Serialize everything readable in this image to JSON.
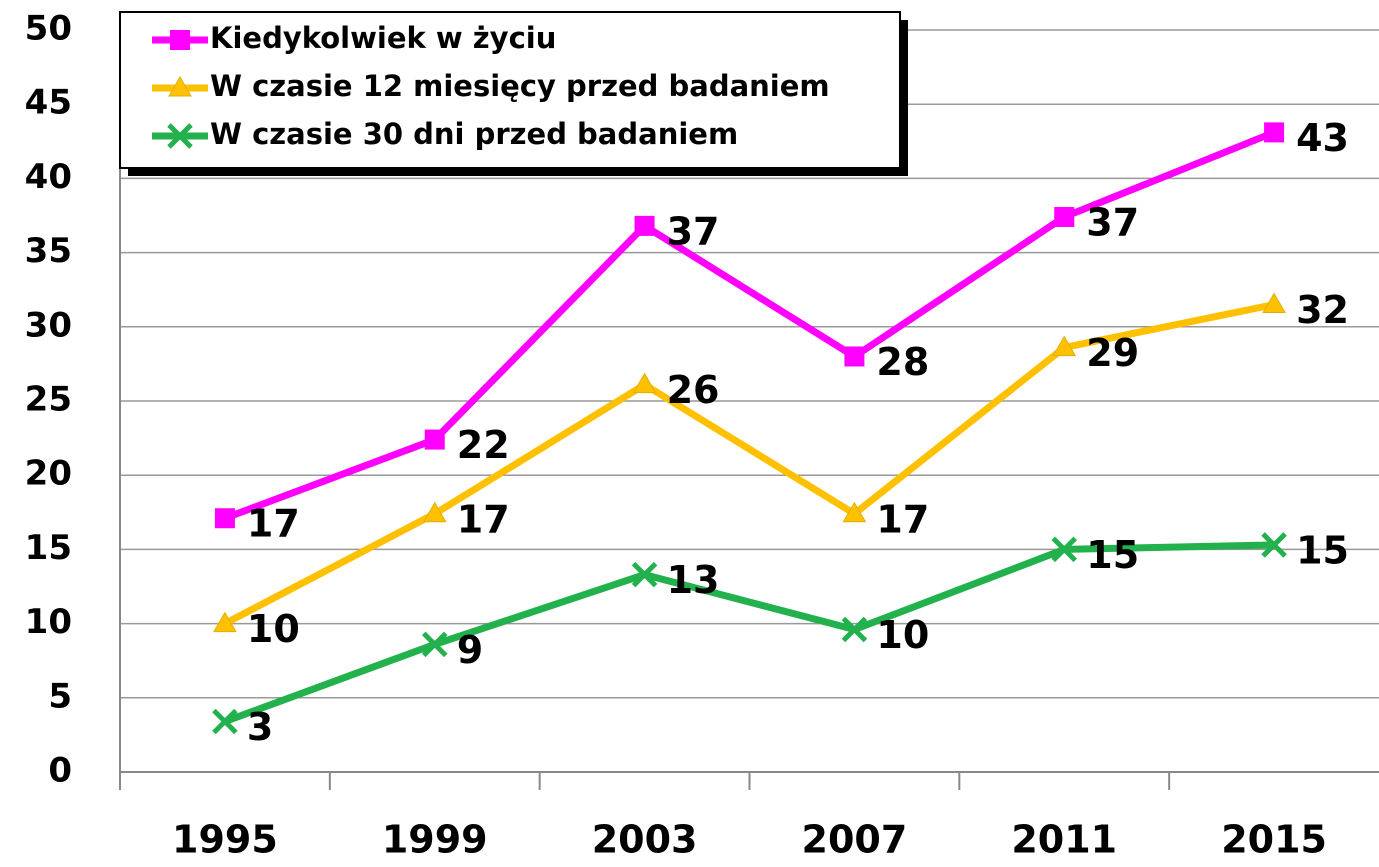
{
  "chart_data": {
    "type": "line",
    "categories": [
      "1995",
      "1999",
      "2003",
      "2007",
      "2011",
      "2015"
    ],
    "series": [
      {
        "name": "Kiedykolwiek w życiu",
        "color": "#ff00ff",
        "marker": "square",
        "values": [
          17.1,
          22.4,
          36.8,
          28.0,
          37.4,
          43.1
        ],
        "value_labels": [
          "17",
          "22",
          "37",
          "28",
          "37",
          "43"
        ]
      },
      {
        "name": "W czasie 12 miesięcy przed badaniem",
        "color": "#ffc000",
        "marker": "triangle",
        "values": [
          10.0,
          17.4,
          26.1,
          17.4,
          28.6,
          31.5
        ],
        "value_labels": [
          "10",
          "17",
          "26",
          "17",
          "29",
          "32"
        ]
      },
      {
        "name": "W czasie 30 dni przed badaniem",
        "color": "#22b14c",
        "marker": "x",
        "values": [
          3.4,
          8.6,
          13.3,
          9.6,
          15.0,
          15.3
        ],
        "value_labels": [
          "3",
          "9",
          "13",
          "10",
          "15",
          "15"
        ]
      }
    ],
    "ylim": [
      0,
      50
    ],
    "yticks": [
      0,
      5,
      10,
      15,
      20,
      25,
      30,
      35,
      40,
      45,
      50
    ],
    "grid": true,
    "legend": "upper left"
  }
}
